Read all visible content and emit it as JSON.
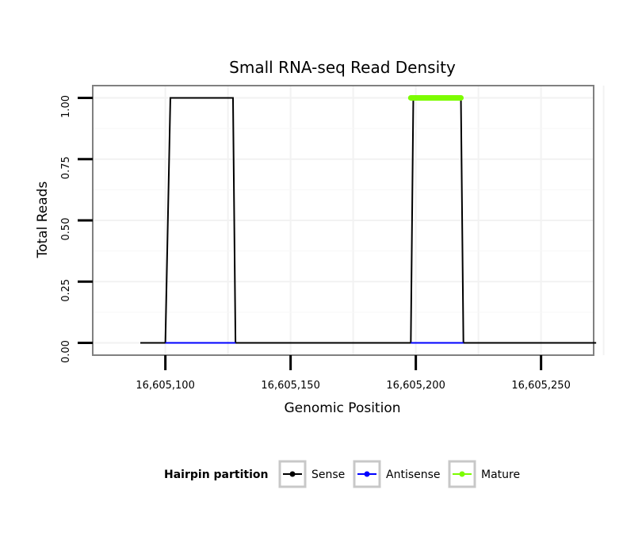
{
  "chart_data": {
    "type": "line",
    "title": "Small RNA-seq Read Density",
    "xlabel": "Genomic Position",
    "ylabel": "Total Reads",
    "xlim": [
      16605071,
      16605271
    ],
    "ylim": [
      -0.05,
      1.05
    ],
    "x_ticks": [
      16605100,
      16605150,
      16605200,
      16605250
    ],
    "x_tick_labels": [
      "16,605,100",
      "16,605,150",
      "16,605,200",
      "16,605,250"
    ],
    "y_ticks": [
      0,
      0.25,
      0.5,
      0.75,
      1
    ],
    "y_tick_labels": [
      "0.00",
      "0.25",
      "0.50",
      "0.75",
      "1.00"
    ],
    "grid": true,
    "legend": {
      "title": "Hairpin partition",
      "position": "bottom",
      "entries": [
        {
          "label": "Sense",
          "color": "#000000"
        },
        {
          "label": "Antisense",
          "color": "#0000ff"
        },
        {
          "label": "Mature",
          "color": "#7cfc00"
        }
      ]
    },
    "series": [
      {
        "name": "Sense",
        "color": "#000000",
        "x": [
          16605090,
          16605100,
          16605102,
          16605127,
          16605128,
          16605198,
          16605199,
          16605218,
          16605219,
          16605272
        ],
        "y": [
          0,
          0,
          1,
          1,
          0,
          0,
          1,
          1,
          0,
          0
        ]
      },
      {
        "name": "Antisense",
        "color": "#0000ff",
        "x": [
          16605100,
          16605128
        ],
        "y": [
          0,
          0
        ],
        "x2": [
          16605198,
          16605219
        ]
      },
      {
        "name": "Mature",
        "color": "#7cfc00",
        "x": [
          16605198,
          16605218
        ],
        "y": [
          1,
          1
        ]
      }
    ]
  }
}
